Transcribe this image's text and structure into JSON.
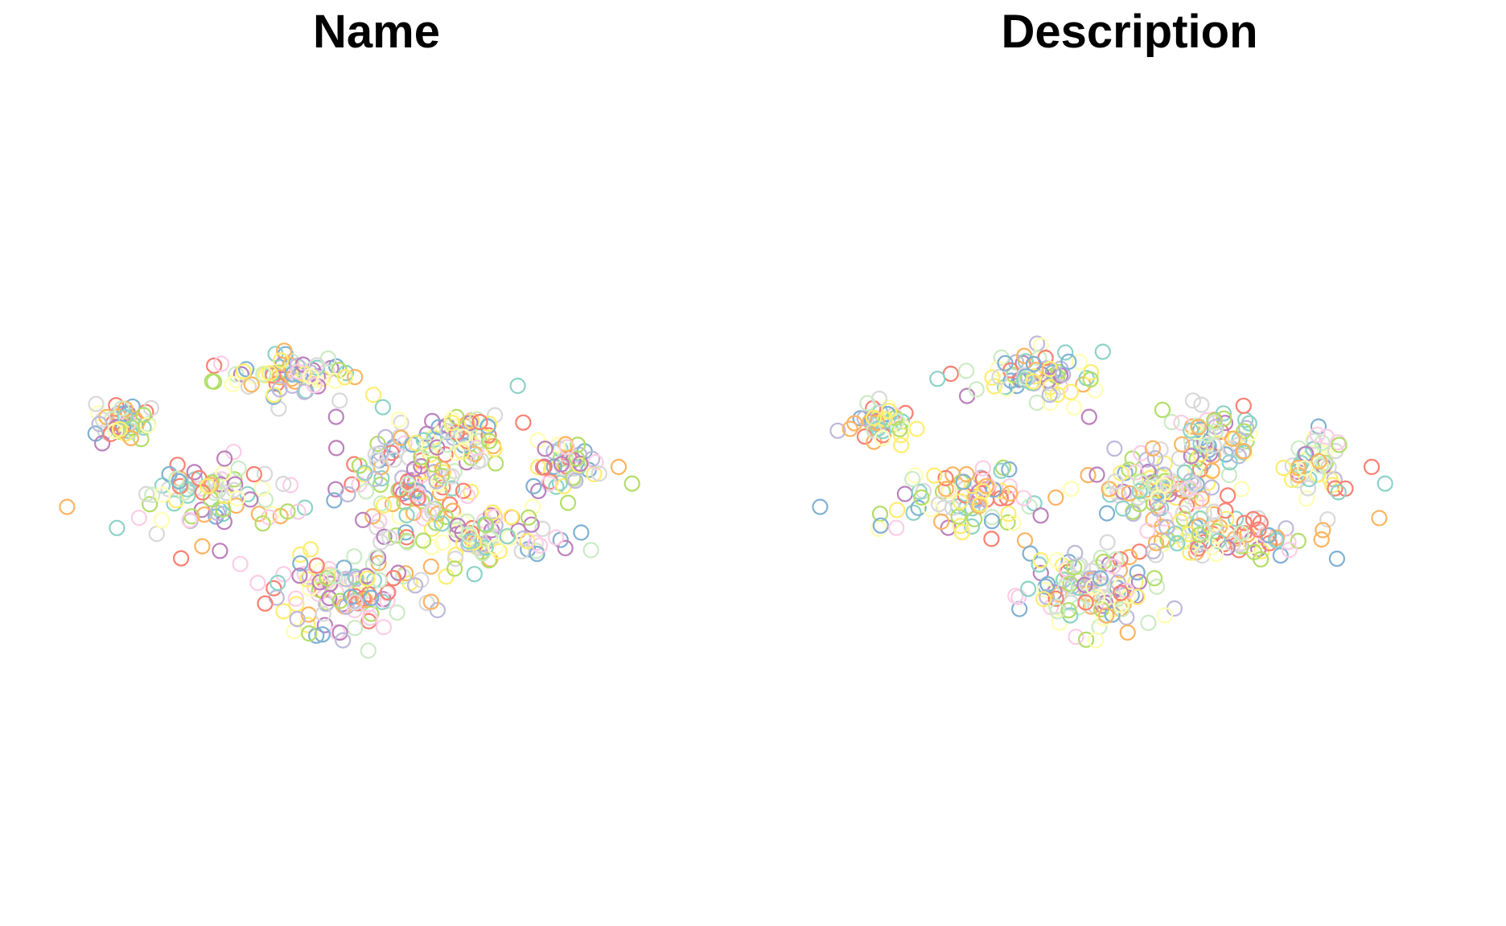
{
  "chart_data": [
    {
      "type": "scatter",
      "title": "Name",
      "xlabel": "",
      "ylabel": "",
      "axes_visible": false,
      "grid": false,
      "legend": "none",
      "marker": "open-circle",
      "palette": [
        "#8DD3C7",
        "#FFFFB3",
        "#BEBADA",
        "#FB8072",
        "#80B1D3",
        "#FDB462",
        "#B3DE69",
        "#FCCDE5",
        "#D9D9D9",
        "#BC80BD",
        "#CCEBC5",
        "#FFED6F"
      ],
      "xlim": [
        0,
        100
      ],
      "ylim": [
        0,
        100
      ],
      "clusters": [
        {
          "x": 37,
          "y": 64,
          "spread_x": 8,
          "spread_y": 3,
          "n": 70
        },
        {
          "x": 13,
          "y": 57,
          "spread_x": 4,
          "spread_y": 3,
          "n": 45
        },
        {
          "x": 27,
          "y": 44,
          "spread_x": 10,
          "spread_y": 4,
          "n": 40
        },
        {
          "x": 55,
          "y": 48,
          "spread_x": 8,
          "spread_y": 6,
          "n": 110
        },
        {
          "x": 63,
          "y": 55,
          "spread_x": 5,
          "spread_y": 4,
          "n": 55
        },
        {
          "x": 78,
          "y": 51,
          "spread_x": 4,
          "spread_y": 4,
          "n": 45
        },
        {
          "x": 65,
          "y": 40,
          "spread_x": 11,
          "spread_y": 3,
          "n": 80
        },
        {
          "x": 45,
          "y": 32,
          "spread_x": 9,
          "spread_y": 5,
          "n": 110
        },
        {
          "x": 26,
          "y": 48,
          "spread_x": 7,
          "spread_y": 3,
          "n": 40
        }
      ],
      "outliers": [
        [
          4,
          44.5
        ],
        [
          44,
          58
        ],
        [
          45,
          24.5
        ],
        [
          86,
          50.5
        ],
        [
          88,
          48
        ]
      ]
    },
    {
      "type": "scatter",
      "title": "Description",
      "xlabel": "",
      "ylabel": "",
      "axes_visible": false,
      "grid": false,
      "legend": "none",
      "marker": "open-circle",
      "palette": [
        "#8DD3C7",
        "#FFFFB3",
        "#BEBADA",
        "#FB8072",
        "#80B1D3",
        "#FDB462",
        "#B3DE69",
        "#FCCDE5",
        "#D9D9D9",
        "#BC80BD",
        "#CCEBC5",
        "#FFED6F"
      ],
      "xlim": [
        0,
        100
      ],
      "ylim": [
        0,
        100
      ],
      "clusters": [
        {
          "x": 37,
          "y": 64,
          "spread_x": 8,
          "spread_y": 3,
          "n": 70
        },
        {
          "x": 13,
          "y": 57,
          "spread_x": 4,
          "spread_y": 3,
          "n": 45
        },
        {
          "x": 27,
          "y": 44,
          "spread_x": 10,
          "spread_y": 4,
          "n": 40
        },
        {
          "x": 55,
          "y": 48,
          "spread_x": 8,
          "spread_y": 6,
          "n": 110
        },
        {
          "x": 63,
          "y": 55,
          "spread_x": 5,
          "spread_y": 4,
          "n": 55
        },
        {
          "x": 78,
          "y": 51,
          "spread_x": 4,
          "spread_y": 4,
          "n": 45
        },
        {
          "x": 65,
          "y": 40,
          "spread_x": 11,
          "spread_y": 3,
          "n": 80
        },
        {
          "x": 45,
          "y": 32,
          "spread_x": 9,
          "spread_y": 5,
          "n": 110
        },
        {
          "x": 26,
          "y": 48,
          "spread_x": 7,
          "spread_y": 3,
          "n": 40
        }
      ],
      "outliers": [
        [
          4,
          44.5
        ],
        [
          44,
          58
        ],
        [
          45,
          24.5
        ],
        [
          86,
          50.5
        ],
        [
          88,
          48
        ]
      ]
    }
  ]
}
